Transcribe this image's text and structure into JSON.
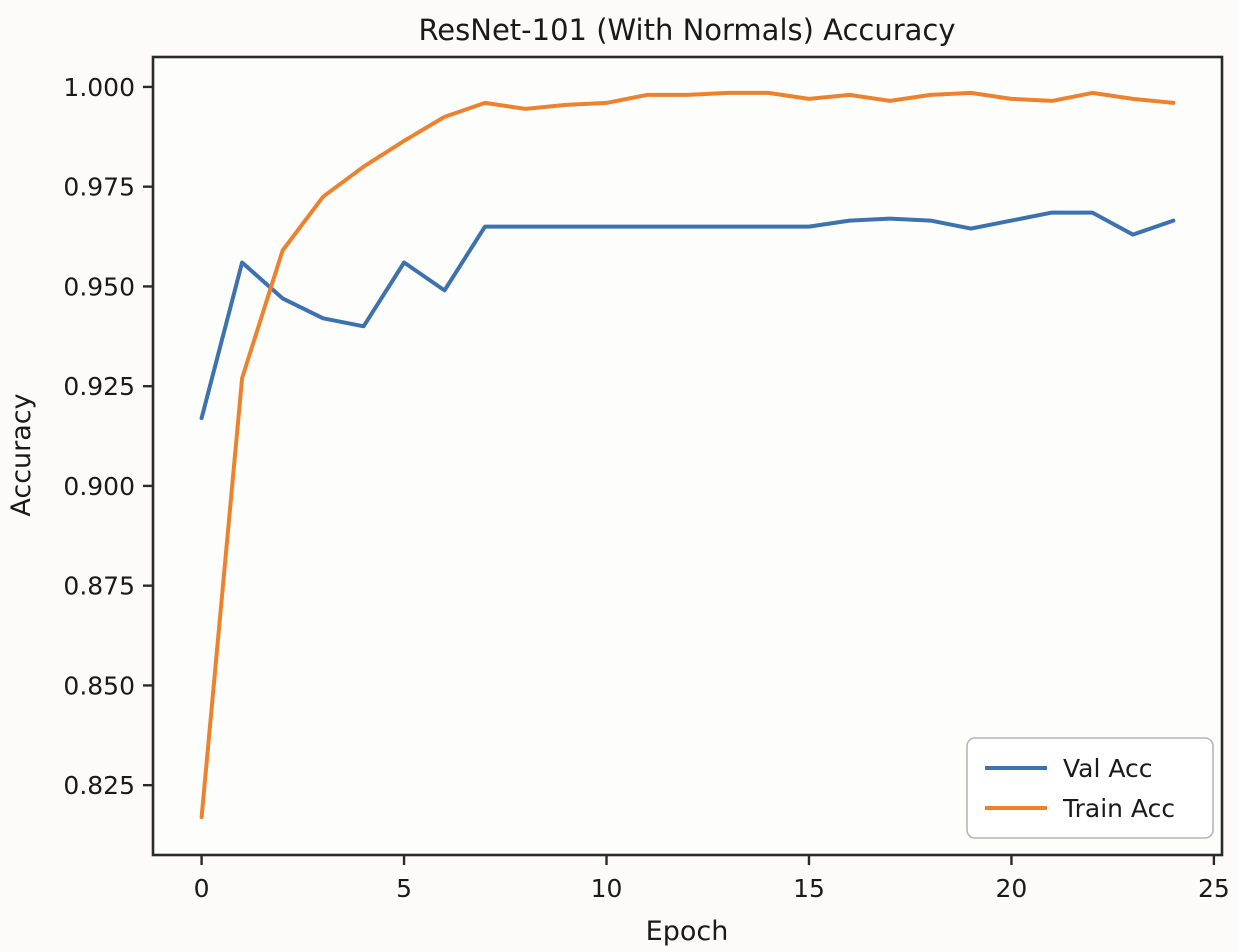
{
  "chart_data": {
    "type": "line",
    "title": "ResNet-101 (With Normals) Accuracy",
    "xlabel": "Epoch",
    "ylabel": "Accuracy",
    "x": [
      0,
      1,
      2,
      3,
      4,
      5,
      6,
      7,
      8,
      9,
      10,
      11,
      12,
      13,
      14,
      15,
      16,
      17,
      18,
      19,
      20,
      21,
      22,
      23,
      24
    ],
    "series": [
      {
        "name": "Val Acc",
        "color": "#3c72ae",
        "values": [
          0.917,
          0.956,
          0.947,
          0.942,
          0.94,
          0.956,
          0.949,
          0.965,
          0.965,
          0.965,
          0.965,
          0.965,
          0.965,
          0.965,
          0.965,
          0.965,
          0.9665,
          0.967,
          0.9665,
          0.9645,
          0.9665,
          0.9685,
          0.9685,
          0.963,
          0.9665
        ]
      },
      {
        "name": "Train Acc",
        "color": "#ec822e",
        "values": [
          0.817,
          0.927,
          0.959,
          0.9725,
          0.98,
          0.9865,
          0.9925,
          0.996,
          0.9945,
          0.9955,
          0.996,
          0.998,
          0.998,
          0.9985,
          0.9985,
          0.997,
          0.998,
          0.9965,
          0.998,
          0.9985,
          0.997,
          0.9965,
          0.9985,
          0.997,
          0.996
        ]
      }
    ],
    "xlim": [
      -1.2,
      25.2
    ],
    "ylim": [
      0.8075,
      1.0075
    ],
    "x_ticks": [
      0,
      5,
      10,
      15,
      20,
      25
    ],
    "y_ticks": [
      0.825,
      0.85,
      0.875,
      0.9,
      0.925,
      0.95,
      0.975,
      1.0
    ],
    "y_tick_decimals": 3,
    "grid": false,
    "legend": {
      "position": "lower right",
      "entries": [
        "Val Acc",
        "Train Acc"
      ]
    },
    "colors": {
      "spine": "#2a2a2a",
      "text": "#1a1a1a",
      "legend_border": "#b5b5b5",
      "plot_background": "#fdfdfc",
      "figure_background": "#fcfbfa"
    }
  }
}
